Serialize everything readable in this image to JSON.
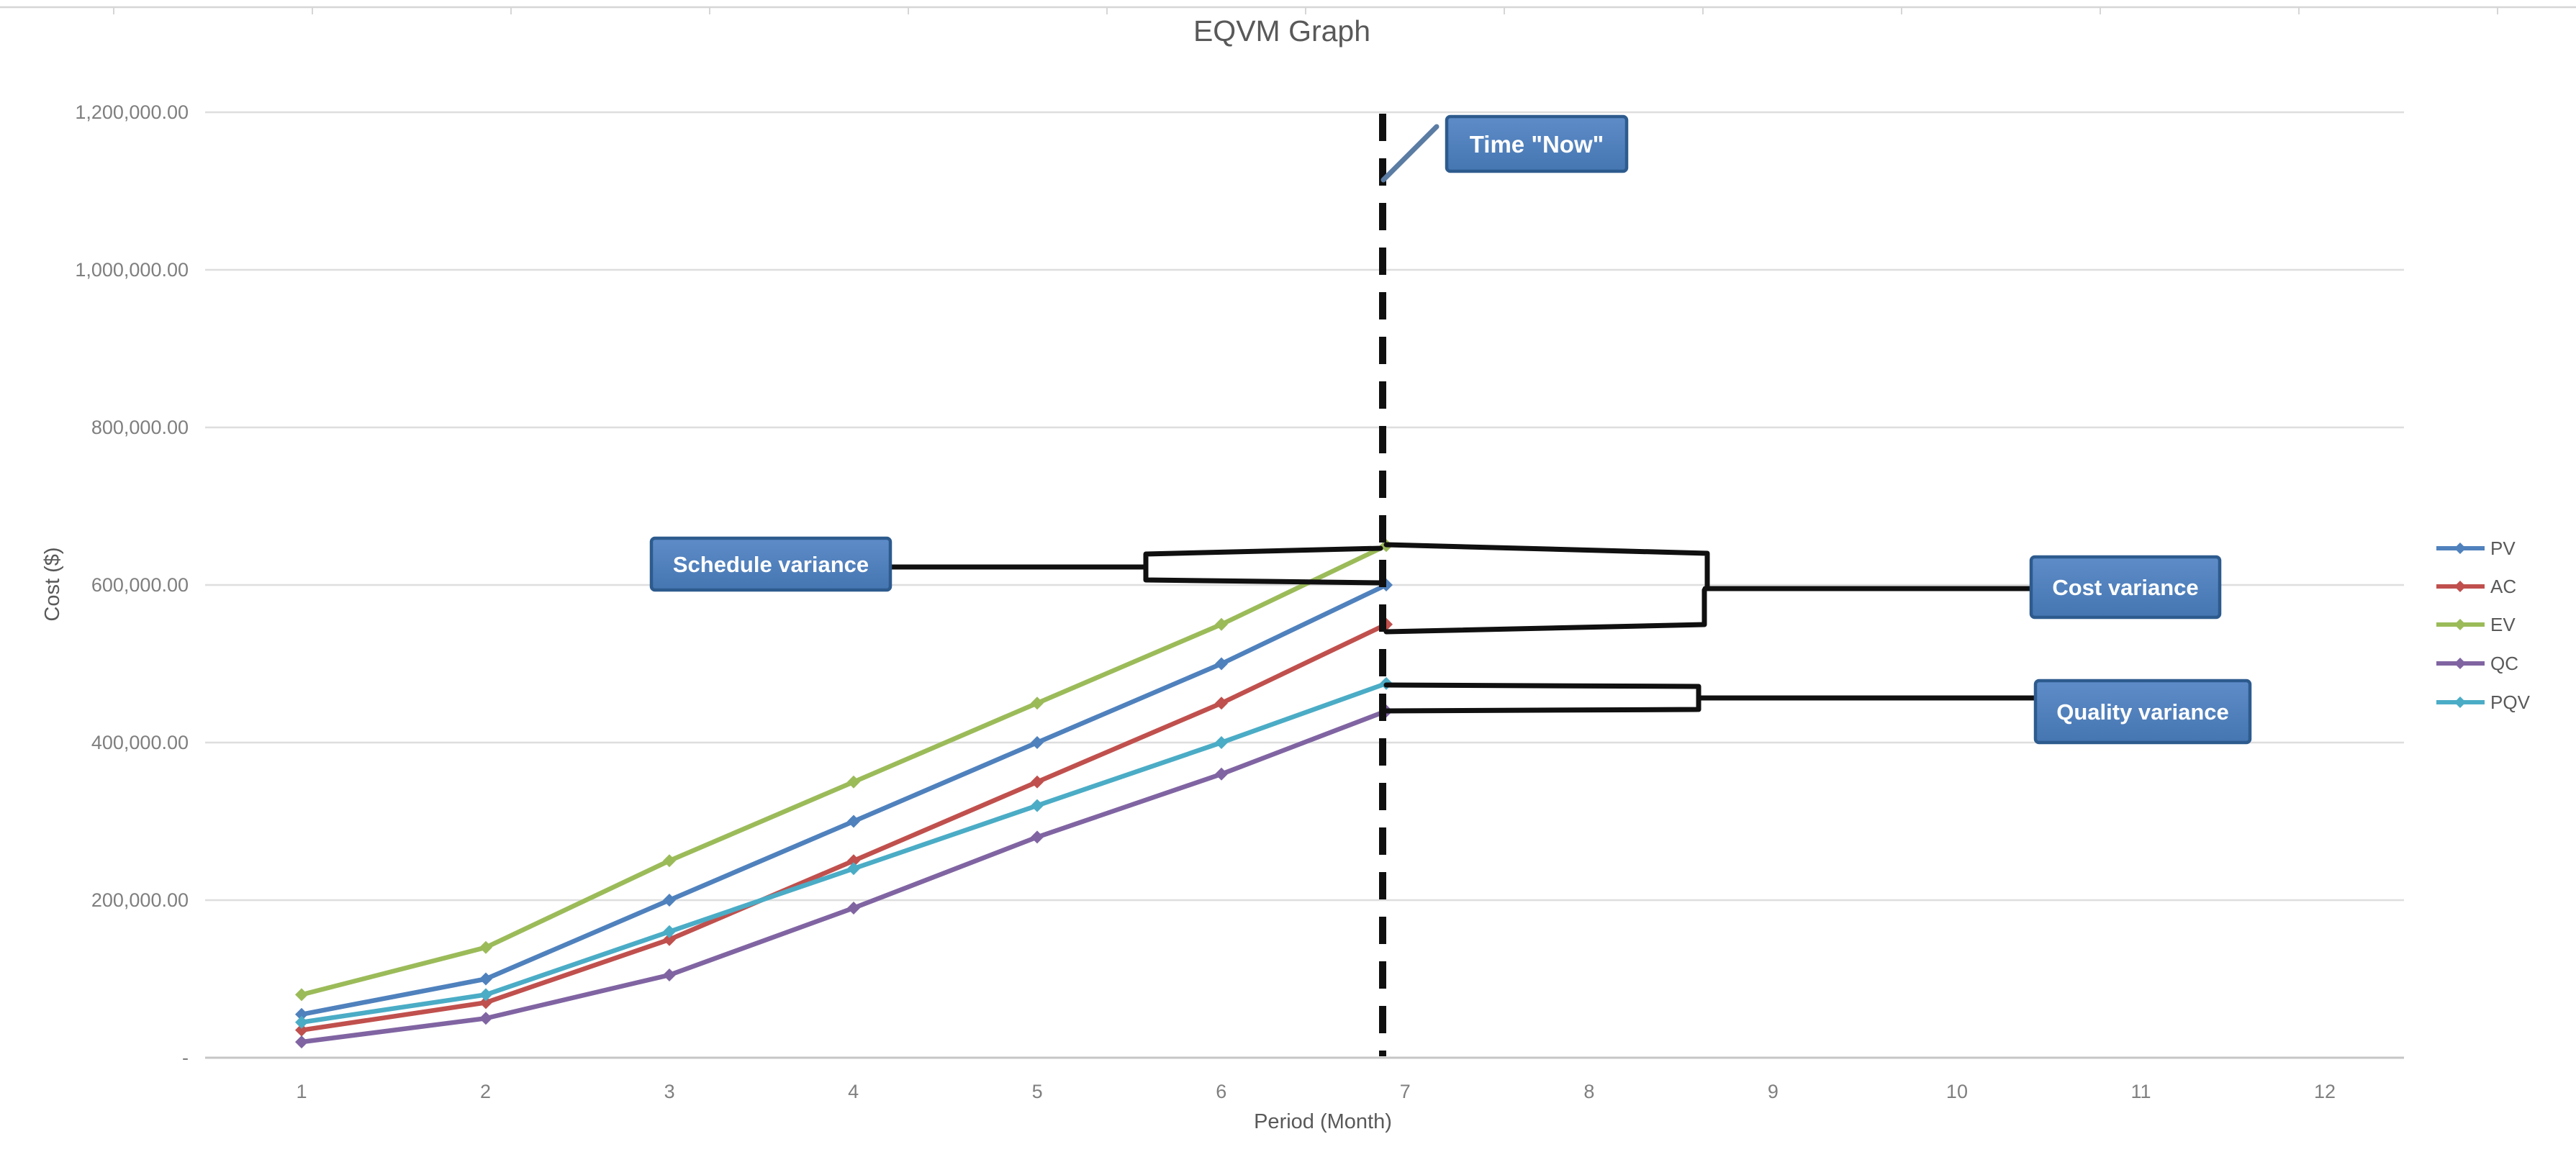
{
  "chart_data": {
    "type": "line",
    "title": "EQVM Graph",
    "xlabel": "Period (Month)",
    "ylabel": "Cost ($)",
    "x": [
      1,
      2,
      3,
      4,
      5,
      6,
      7
    ],
    "x_ticks": [
      "1",
      "2",
      "3",
      "4",
      "5",
      "6",
      "7",
      "8",
      "9",
      "10",
      "11",
      "12"
    ],
    "y_ticks": [
      {
        "value": 0,
        "label": "-"
      },
      {
        "value": 200000,
        "label": "200,000.00"
      },
      {
        "value": 400000,
        "label": "400,000.00"
      },
      {
        "value": 600000,
        "label": "600,000.00"
      },
      {
        "value": 800000,
        "label": "800,000.00"
      },
      {
        "value": 1000000,
        "label": "1,000,000.00"
      },
      {
        "value": 1200000,
        "label": "1,200,000.00"
      }
    ],
    "ylim": [
      0,
      1200000
    ],
    "xlim": [
      1,
      12
    ],
    "grid": true,
    "legend_position": "right",
    "series": [
      {
        "name": "PV",
        "color": "#4f81bd",
        "values": [
          55000,
          100000,
          200000,
          300000,
          400000,
          500000,
          600000
        ]
      },
      {
        "name": "AC",
        "color": "#c0504d",
        "values": [
          35000,
          70000,
          150000,
          250000,
          350000,
          450000,
          550000
        ]
      },
      {
        "name": "EV",
        "color": "#9bbb59",
        "values": [
          80000,
          140000,
          250000,
          350000,
          450000,
          550000,
          650000
        ]
      },
      {
        "name": "QC",
        "color": "#8064a2",
        "values": [
          20000,
          50000,
          105000,
          190000,
          280000,
          360000,
          440000
        ]
      },
      {
        "name": "PQV",
        "color": "#4bacc6",
        "values": [
          45000,
          80000,
          160000,
          240000,
          320000,
          400000,
          475000
        ]
      }
    ],
    "annotations": {
      "time_now": "Time \"Now\"",
      "schedule_variance": "Schedule variance",
      "cost_variance": "Cost variance",
      "quality_variance": "Quality variance"
    }
  },
  "colors": {
    "annotation_fill_top": "#5e8cc8",
    "annotation_fill_bottom": "#4576b1",
    "annotation_border": "#2d5b8e",
    "annotation_text": "#ffffff",
    "grid": "#dedede",
    "axis_line": "#c6c6c6",
    "top_border": "#d6d6d6",
    "title_text": "#595959",
    "tick_text": "#7f7f7f",
    "ink": "#101010",
    "timenow_leader": "#5b7ca3"
  }
}
